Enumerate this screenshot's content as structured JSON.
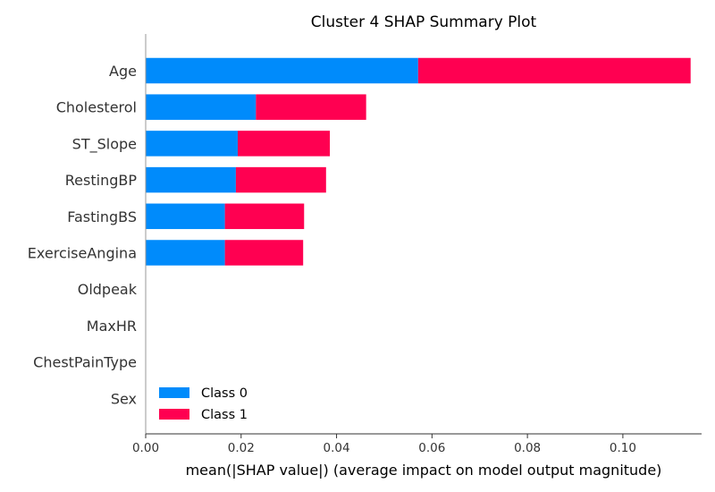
{
  "chart_data": {
    "type": "bar",
    "stacked": true,
    "orientation": "horizontal",
    "title": "Cluster 4 SHAP Summary Plot",
    "xlabel": "mean(|SHAP value|) (average impact on model output magnitude)",
    "ylabel": "",
    "categories": [
      "Age",
      "Cholesterol",
      "ST_Slope",
      "RestingBP",
      "FastingBS",
      "ExerciseAngina",
      "Oldpeak",
      "MaxHR",
      "ChestPainType",
      "Sex"
    ],
    "series": [
      {
        "name": "Class 0",
        "color": "#008bfb",
        "values": [
          0.0571,
          0.0231,
          0.0193,
          0.0189,
          0.0166,
          0.0166,
          0,
          0,
          0,
          0
        ]
      },
      {
        "name": "Class 1",
        "color": "#ff0051",
        "values": [
          0.0571,
          0.0231,
          0.0193,
          0.0189,
          0.0166,
          0.0164,
          0,
          0,
          0,
          0
        ]
      }
    ],
    "xlim": [
      0,
      0.1165
    ],
    "xticks": [
      {
        "value": 0.0,
        "label": "0.00"
      },
      {
        "value": 0.02,
        "label": "0.02"
      },
      {
        "value": 0.04,
        "label": "0.04"
      },
      {
        "value": 0.06,
        "label": "0.06"
      },
      {
        "value": 0.08,
        "label": "0.08"
      },
      {
        "value": 0.1,
        "label": "0.10"
      }
    ],
    "legend_position": "lower-left",
    "grid": false
  }
}
